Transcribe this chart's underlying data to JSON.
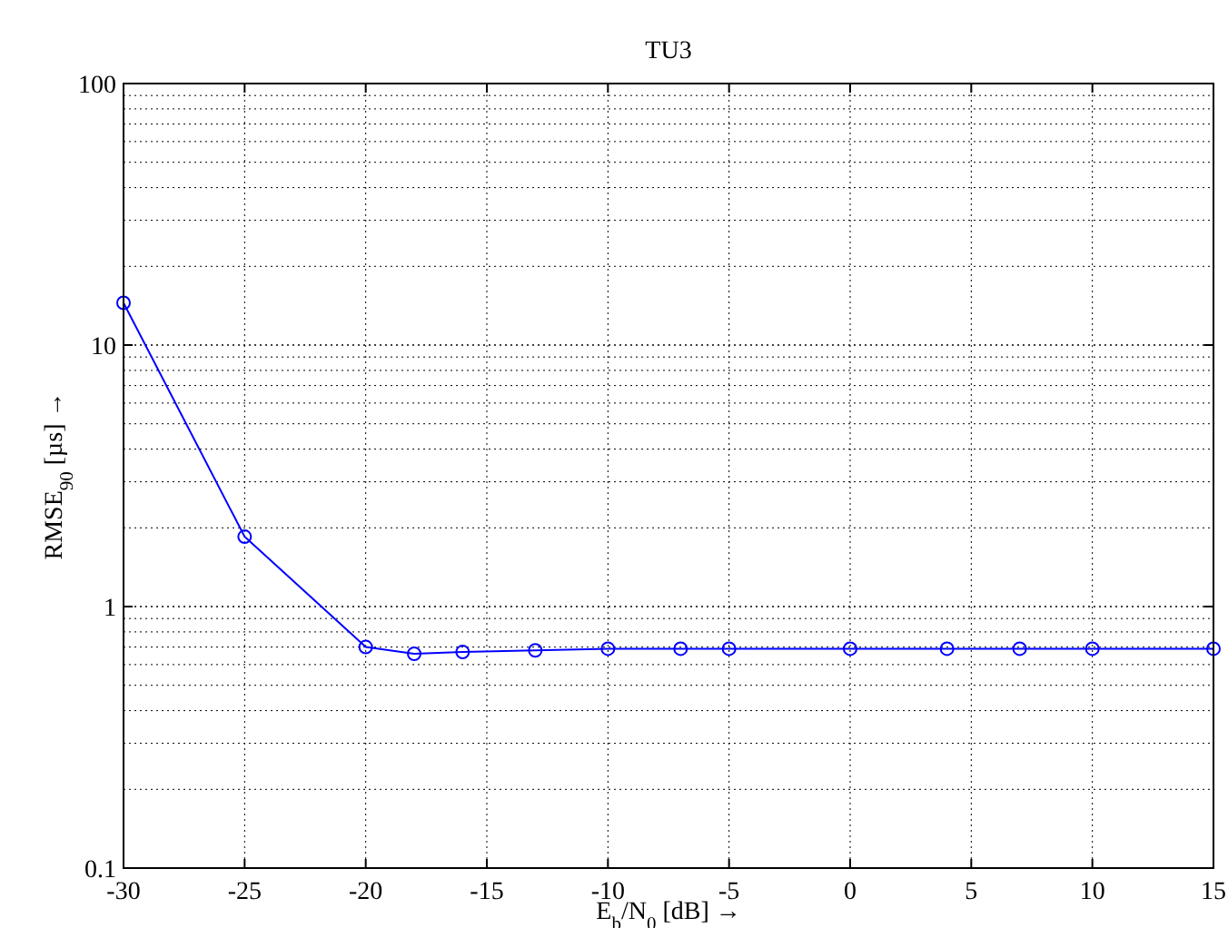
{
  "chart_data": {
    "type": "line",
    "title": "TU3",
    "xlabel": "E$_{b}$/N$_{0}$ [dB] →",
    "ylabel": "RMSE$_{90}$ [µs] →",
    "x": [
      -30,
      -25,
      -20,
      -18,
      -16,
      -13,
      -10,
      -7,
      -5,
      0,
      4,
      7,
      10,
      15
    ],
    "series": [
      {
        "color": "#0000ff",
        "values": [
          14.5,
          1.85,
          0.7,
          0.66,
          0.67,
          0.68,
          0.69,
          0.69,
          0.69,
          0.69,
          0.69,
          0.69,
          0.69,
          0.69
        ]
      }
    ],
    "xlim": [
      -30,
      15
    ],
    "xticks": [
      -30,
      -25,
      -20,
      -15,
      -10,
      -5,
      0,
      5,
      10,
      15
    ],
    "ylim": [
      0.1,
      100
    ],
    "yticks": [
      0.1,
      1,
      10,
      100
    ],
    "log": "y",
    "grid": true,
    "marker": "circle",
    "line_style": "solid"
  }
}
